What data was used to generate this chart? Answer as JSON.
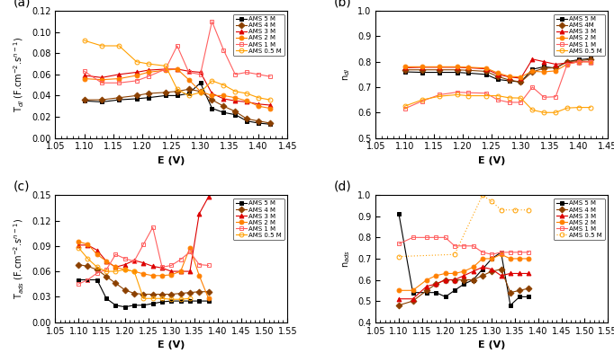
{
  "colors": {
    "5M": "#000000",
    "4M": "#8B4000",
    "3M": "#DD0000",
    "2M": "#FF8000",
    "1M": "#FF6060",
    "0.5M": "#FFA000"
  },
  "markers": {
    "5M": "s",
    "4M": "D",
    "3M": "^",
    "2M": "o",
    "1M": "s",
    "0.5M": "o"
  },
  "filled": {
    "5M": true,
    "4M": true,
    "3M": true,
    "2M": true,
    "1M": false,
    "0.5M": false
  },
  "linestyle": {
    "5M": "-",
    "4M": "-",
    "3M": "-",
    "2M": "-",
    "1M": "-",
    "0.5M": "-"
  },
  "panel_a": {
    "title": "(a)",
    "xlabel": "E (V)",
    "ylabel": "T$_{dl}$ (F.cm$^{-2}$.s$^{n-1}$)",
    "xlim": [
      1.05,
      1.45
    ],
    "ylim": [
      0,
      0.12
    ],
    "yticks": [
      0,
      0.02,
      0.04,
      0.06,
      0.08,
      0.1,
      0.12
    ],
    "xticks": [
      1.05,
      1.1,
      1.15,
      1.2,
      1.25,
      1.3,
      1.35,
      1.4,
      1.45
    ],
    "legend_labels": [
      "AMS 5 M",
      "AMS 4 M",
      "AMS 3 M",
      "AMS 2 M",
      "AMS 1 M",
      "AMS 0.5 M"
    ],
    "series": {
      "5M": {
        "x": [
          1.1,
          1.13,
          1.16,
          1.19,
          1.21,
          1.24,
          1.26,
          1.28,
          1.3,
          1.32,
          1.34,
          1.36,
          1.38,
          1.4,
          1.42
        ],
        "y": [
          0.035,
          0.034,
          0.036,
          0.037,
          0.038,
          0.04,
          0.04,
          0.042,
          0.052,
          0.028,
          0.024,
          0.022,
          0.016,
          0.014,
          0.013
        ]
      },
      "4M": {
        "x": [
          1.1,
          1.13,
          1.16,
          1.19,
          1.21,
          1.24,
          1.26,
          1.28,
          1.3,
          1.32,
          1.34,
          1.36,
          1.38,
          1.4,
          1.42
        ],
        "y": [
          0.036,
          0.036,
          0.038,
          0.04,
          0.042,
          0.043,
          0.044,
          0.046,
          0.044,
          0.036,
          0.03,
          0.025,
          0.018,
          0.016,
          0.014
        ]
      },
      "3M": {
        "x": [
          1.1,
          1.13,
          1.16,
          1.19,
          1.21,
          1.24,
          1.26,
          1.28,
          1.3,
          1.32,
          1.34,
          1.36,
          1.38,
          1.4,
          1.42
        ],
        "y": [
          0.059,
          0.057,
          0.06,
          0.062,
          0.064,
          0.065,
          0.065,
          0.063,
          0.062,
          0.042,
          0.037,
          0.035,
          0.034,
          0.032,
          0.031
        ]
      },
      "2M": {
        "x": [
          1.1,
          1.13,
          1.16,
          1.19,
          1.21,
          1.24,
          1.26,
          1.28,
          1.3,
          1.32,
          1.34,
          1.36,
          1.38,
          1.4,
          1.42
        ],
        "y": [
          0.056,
          0.055,
          0.056,
          0.059,
          0.062,
          0.064,
          0.065,
          0.055,
          0.044,
          0.04,
          0.04,
          0.038,
          0.035,
          0.03,
          0.028
        ]
      },
      "1M": {
        "x": [
          1.1,
          1.13,
          1.16,
          1.19,
          1.21,
          1.24,
          1.26,
          1.28,
          1.3,
          1.32,
          1.34,
          1.36,
          1.38,
          1.4,
          1.42
        ],
        "y": [
          0.063,
          0.052,
          0.052,
          0.054,
          0.058,
          0.065,
          0.087,
          0.062,
          0.06,
          0.11,
          0.083,
          0.06,
          0.062,
          0.06,
          0.058
        ]
      },
      "0.5M": {
        "x": [
          1.1,
          1.13,
          1.16,
          1.19,
          1.21,
          1.24,
          1.26,
          1.28,
          1.3,
          1.32,
          1.34,
          1.36,
          1.38,
          1.4,
          1.42
        ],
        "y": [
          0.092,
          0.087,
          0.087,
          0.072,
          0.07,
          0.068,
          0.046,
          0.04,
          0.043,
          0.054,
          0.05,
          0.044,
          0.042,
          0.038,
          0.036
        ]
      }
    }
  },
  "panel_b": {
    "title": "(b)",
    "xlabel": "E (V)",
    "ylabel": "n$_{dl}$",
    "xlim": [
      1.05,
      1.45
    ],
    "ylim": [
      0.5,
      1.0
    ],
    "yticks": [
      0.5,
      0.6,
      0.7,
      0.8,
      0.9,
      1.0
    ],
    "xticks": [
      1.05,
      1.1,
      1.15,
      1.2,
      1.25,
      1.3,
      1.35,
      1.4,
      1.45
    ],
    "legend_labels": [
      "AMS 5 M",
      "AMS 4M",
      "AMS 3 M",
      "AMS 2 M",
      "AMS 1 M",
      "AMS 0.5 M"
    ],
    "series": {
      "5M": {
        "x": [
          1.1,
          1.13,
          1.16,
          1.19,
          1.21,
          1.24,
          1.26,
          1.28,
          1.3,
          1.32,
          1.34,
          1.36,
          1.38,
          1.4,
          1.42
        ],
        "y": [
          0.76,
          0.758,
          0.758,
          0.758,
          0.755,
          0.75,
          0.73,
          0.725,
          0.72,
          0.77,
          0.78,
          0.775,
          0.8,
          0.808,
          0.812
        ]
      },
      "4M": {
        "x": [
          1.1,
          1.13,
          1.16,
          1.19,
          1.21,
          1.24,
          1.26,
          1.28,
          1.3,
          1.32,
          1.34,
          1.36,
          1.38,
          1.4,
          1.42
        ],
        "y": [
          0.768,
          0.768,
          0.768,
          0.768,
          0.766,
          0.762,
          0.742,
          0.728,
          0.72,
          0.76,
          0.774,
          0.776,
          0.8,
          0.804,
          0.808
        ]
      },
      "3M": {
        "x": [
          1.1,
          1.13,
          1.16,
          1.19,
          1.21,
          1.24,
          1.26,
          1.28,
          1.3,
          1.32,
          1.34,
          1.36,
          1.38,
          1.4,
          1.42
        ],
        "y": [
          0.776,
          0.778,
          0.778,
          0.778,
          0.776,
          0.772,
          0.75,
          0.74,
          0.735,
          0.81,
          0.8,
          0.79,
          0.795,
          0.8,
          0.8
        ]
      },
      "2M": {
        "x": [
          1.1,
          1.13,
          1.16,
          1.19,
          1.21,
          1.24,
          1.26,
          1.28,
          1.3,
          1.32,
          1.34,
          1.36,
          1.38,
          1.4,
          1.42
        ],
        "y": [
          0.78,
          0.78,
          0.78,
          0.78,
          0.778,
          0.775,
          0.756,
          0.742,
          0.74,
          0.762,
          0.76,
          0.764,
          0.79,
          0.8,
          0.8
        ]
      },
      "1M": {
        "x": [
          1.1,
          1.13,
          1.16,
          1.19,
          1.21,
          1.24,
          1.26,
          1.28,
          1.3,
          1.32,
          1.34,
          1.36,
          1.38,
          1.4,
          1.42
        ],
        "y": [
          0.615,
          0.645,
          0.67,
          0.68,
          0.678,
          0.676,
          0.65,
          0.64,
          0.64,
          0.7,
          0.66,
          0.662,
          0.79,
          0.8,
          0.8
        ]
      },
      "0.5M": {
        "x": [
          1.1,
          1.13,
          1.16,
          1.19,
          1.21,
          1.24,
          1.26,
          1.28,
          1.3,
          1.32,
          1.34,
          1.36,
          1.38,
          1.4,
          1.42
        ],
        "y": [
          0.625,
          0.65,
          0.664,
          0.67,
          0.666,
          0.666,
          0.666,
          0.658,
          0.657,
          0.61,
          0.6,
          0.6,
          0.618,
          0.62,
          0.62
        ]
      }
    }
  },
  "panel_c": {
    "title": "(c)",
    "xlabel": "E (V)",
    "ylabel": "T$_{ads}$ (F.cm$^{-2}$.s$^{n-1}$)",
    "xlim": [
      1.05,
      1.55
    ],
    "ylim": [
      0,
      0.15
    ],
    "yticks": [
      0,
      0.03,
      0.06,
      0.09,
      0.12,
      0.15
    ],
    "xticks": [
      1.05,
      1.1,
      1.15,
      1.2,
      1.25,
      1.3,
      1.35,
      1.4,
      1.45,
      1.5,
      1.55
    ],
    "legend_labels": [
      "AMS 5 M",
      "AMS 4 M",
      "AMS 3 M",
      "AMS 2 M",
      "AMS 1 M",
      "AMS 0.5 M"
    ],
    "series": {
      "5M": {
        "x": [
          1.1,
          1.12,
          1.14,
          1.16,
          1.18,
          1.2,
          1.22,
          1.24,
          1.26,
          1.28,
          1.3,
          1.32,
          1.34,
          1.36,
          1.38
        ],
        "y": [
          0.05,
          0.05,
          0.05,
          0.028,
          0.02,
          0.018,
          0.02,
          0.02,
          0.022,
          0.024,
          0.025,
          0.025,
          0.025,
          0.025,
          0.025
        ]
      },
      "4M": {
        "x": [
          1.1,
          1.12,
          1.14,
          1.16,
          1.18,
          1.2,
          1.22,
          1.24,
          1.26,
          1.28,
          1.3,
          1.32,
          1.34,
          1.36,
          1.38
        ],
        "y": [
          0.068,
          0.066,
          0.062,
          0.054,
          0.046,
          0.038,
          0.034,
          0.033,
          0.033,
          0.033,
          0.033,
          0.034,
          0.035,
          0.036,
          0.036
        ]
      },
      "3M": {
        "x": [
          1.1,
          1.12,
          1.14,
          1.16,
          1.18,
          1.2,
          1.22,
          1.24,
          1.26,
          1.28,
          1.3,
          1.32,
          1.34,
          1.36,
          1.38
        ],
        "y": [
          0.091,
          0.091,
          0.085,
          0.072,
          0.065,
          0.068,
          0.073,
          0.07,
          0.066,
          0.064,
          0.06,
          0.06,
          0.06,
          0.128,
          0.148
        ]
      },
      "2M": {
        "x": [
          1.1,
          1.12,
          1.14,
          1.16,
          1.18,
          1.2,
          1.22,
          1.24,
          1.26,
          1.28,
          1.3,
          1.32,
          1.34,
          1.36,
          1.38
        ],
        "y": [
          0.095,
          0.092,
          0.08,
          0.072,
          0.065,
          0.062,
          0.06,
          0.057,
          0.055,
          0.055,
          0.056,
          0.06,
          0.088,
          0.055,
          0.028
        ]
      },
      "1M": {
        "x": [
          1.1,
          1.12,
          1.14,
          1.16,
          1.18,
          1.2,
          1.22,
          1.24,
          1.26,
          1.28,
          1.3,
          1.32,
          1.34,
          1.36,
          1.38
        ],
        "y": [
          0.045,
          0.05,
          0.058,
          0.062,
          0.08,
          0.075,
          0.072,
          0.092,
          0.112,
          0.065,
          0.067,
          0.074,
          0.083,
          0.068,
          0.067
        ]
      },
      "0.5M": {
        "x": [
          1.1,
          1.12,
          1.14,
          1.16,
          1.18,
          1.2,
          1.22,
          1.24,
          1.26,
          1.28,
          1.3,
          1.32,
          1.34
        ],
        "y": [
          0.088,
          0.075,
          0.065,
          0.06,
          0.06,
          0.062,
          0.06,
          0.028,
          0.028,
          0.028,
          0.027,
          0.027,
          0.028
        ]
      }
    }
  },
  "panel_d": {
    "title": "(d)",
    "xlabel": "E (V)",
    "ylabel": "n$_{ads}$",
    "xlim": [
      1.05,
      1.55
    ],
    "ylim": [
      0.4,
      1.0
    ],
    "yticks": [
      0.4,
      0.5,
      0.6,
      0.7,
      0.8,
      0.9,
      1.0
    ],
    "xticks": [
      1.05,
      1.1,
      1.15,
      1.2,
      1.25,
      1.3,
      1.35,
      1.4,
      1.45,
      1.5,
      1.55
    ],
    "legend_labels": [
      "AMS 5 M",
      "AMS 4 M",
      "AMS 3 M",
      "AMS 2 M",
      "AMS 1 M",
      "AMS 0.5 M"
    ],
    "linestyle_05M": "dotted",
    "series": {
      "5M": {
        "x": [
          1.1,
          1.13,
          1.16,
          1.18,
          1.2,
          1.22,
          1.24,
          1.26,
          1.28,
          1.3,
          1.32,
          1.34,
          1.36,
          1.38
        ],
        "y": [
          0.91,
          0.54,
          0.54,
          0.54,
          0.52,
          0.55,
          0.58,
          0.6,
          0.65,
          0.7,
          0.73,
          0.48,
          0.52,
          0.52
        ]
      },
      "4M": {
        "x": [
          1.1,
          1.13,
          1.16,
          1.18,
          1.2,
          1.22,
          1.24,
          1.26,
          1.28,
          1.3,
          1.32,
          1.34,
          1.36,
          1.38
        ],
        "y": [
          0.48,
          0.5,
          0.55,
          0.58,
          0.6,
          0.6,
          0.6,
          0.6,
          0.62,
          0.64,
          0.65,
          0.54,
          0.55,
          0.56
        ]
      },
      "3M": {
        "x": [
          1.1,
          1.13,
          1.16,
          1.18,
          1.2,
          1.22,
          1.24,
          1.26,
          1.28,
          1.3,
          1.32,
          1.34,
          1.36,
          1.38
        ],
        "y": [
          0.51,
          0.51,
          0.57,
          0.58,
          0.6,
          0.6,
          0.62,
          0.64,
          0.66,
          0.65,
          0.62,
          0.63,
          0.63,
          0.63
        ]
      },
      "2M": {
        "x": [
          1.1,
          1.13,
          1.16,
          1.18,
          1.2,
          1.22,
          1.24,
          1.26,
          1.28,
          1.3,
          1.32,
          1.34,
          1.36,
          1.38
        ],
        "y": [
          0.55,
          0.55,
          0.6,
          0.62,
          0.63,
          0.63,
          0.64,
          0.66,
          0.7,
          0.7,
          0.72,
          0.7,
          0.7,
          0.7
        ]
      },
      "1M": {
        "x": [
          1.1,
          1.13,
          1.16,
          1.18,
          1.2,
          1.22,
          1.24,
          1.26,
          1.28,
          1.3,
          1.32,
          1.34,
          1.36,
          1.38
        ],
        "y": [
          0.77,
          0.8,
          0.8,
          0.8,
          0.8,
          0.76,
          0.76,
          0.76,
          0.73,
          0.72,
          0.73,
          0.73,
          0.73,
          0.73
        ]
      },
      "0.5M": {
        "x": [
          1.1,
          1.22,
          1.28,
          1.3,
          1.32,
          1.35,
          1.38
        ],
        "y": [
          0.71,
          0.72,
          1.0,
          0.97,
          0.93,
          0.93,
          0.93
        ]
      }
    }
  }
}
